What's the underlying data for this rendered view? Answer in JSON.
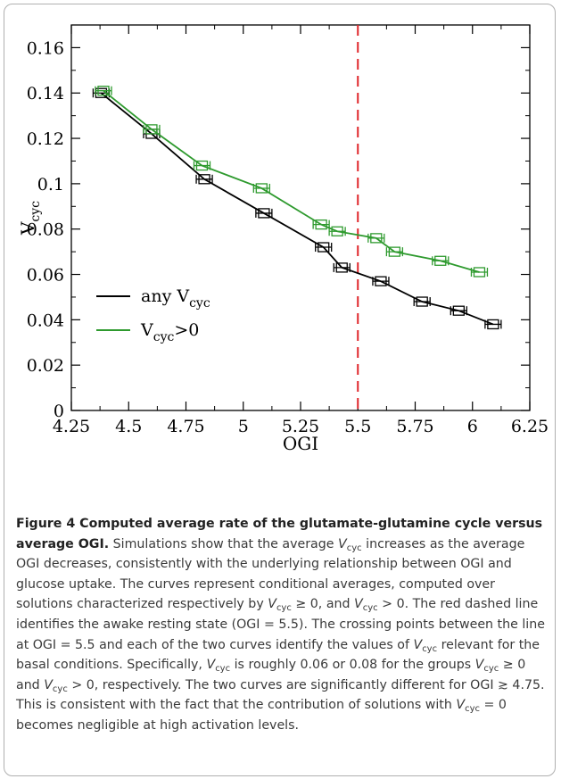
{
  "chart_data": {
    "type": "line",
    "xlabel": "OGI",
    "ylabel": "V_cyc",
    "xlim": [
      4.25,
      6.25
    ],
    "ylim": [
      0,
      0.17
    ],
    "xticks": [
      "4.25",
      "4.5",
      "4.75",
      "5",
      "5.25",
      "5.5",
      "5.75",
      "6",
      "6.25"
    ],
    "yticks": [
      "0",
      "0.02",
      "0.04",
      "0.06",
      "0.08",
      "0.1",
      "0.12",
      "0.14",
      "0.16"
    ],
    "grid": false,
    "legend_position": "lower-left",
    "vline": {
      "x": 5.5,
      "color": "#e0262b",
      "style": "dashed"
    },
    "series": [
      {
        "name": "any V_cyc",
        "color": "#000000",
        "x": [
          4.38,
          4.6,
          4.83,
          5.09,
          5.35,
          5.43,
          5.6,
          5.78,
          5.94,
          6.09
        ],
        "y": [
          0.14,
          0.122,
          0.102,
          0.087,
          0.072,
          0.063,
          0.057,
          0.048,
          0.044,
          0.038
        ]
      },
      {
        "name": "V_cyc>0",
        "color": "#2e9a2e",
        "x": [
          4.39,
          4.6,
          4.82,
          5.08,
          5.34,
          5.41,
          5.58,
          5.66,
          5.86,
          6.03
        ],
        "y": [
          0.141,
          0.124,
          0.108,
          0.098,
          0.082,
          0.079,
          0.076,
          0.07,
          0.066,
          0.061
        ]
      }
    ],
    "legend": {
      "series1_main": "any V",
      "series1_sub": "cyc",
      "series2_main": "V",
      "series2_sub": "cyc",
      "series2_tail": ">0"
    },
    "ylabel_parts": {
      "main": "V",
      "sub": "cyc"
    }
  },
  "caption": {
    "lead": "Figure 4 Computed average rate of the glutamate-glutamine cycle versus average OGI.",
    "s1": " Simulations show that the average ",
    "v": "V",
    "sub": "cyc",
    "s2": " increases as the average OGI decreases, consistently with the underlying relationship between OGI and glucose uptake. The curves represent conditional averages, computed over solutions characterized respectively by ",
    "s3": " ≥ 0, and ",
    "s4": " > 0. The red dashed line identifies the awake resting state (OGI = 5.5). The crossing points between the line at OGI = 5.5 and each of the two curves identify the values of ",
    "s5": " relevant for the basal conditions. Specifically, ",
    "s6": " is roughly 0.06 or 0.08 for the groups ",
    "s7": " ≥ 0 and ",
    "s8": " > 0, respectively. The two curves are significantly different for OGI ≳ 4.75. This is consistent with the fact that the contribution of solutions with ",
    "s9": " = 0 becomes negligible at high activation levels."
  }
}
